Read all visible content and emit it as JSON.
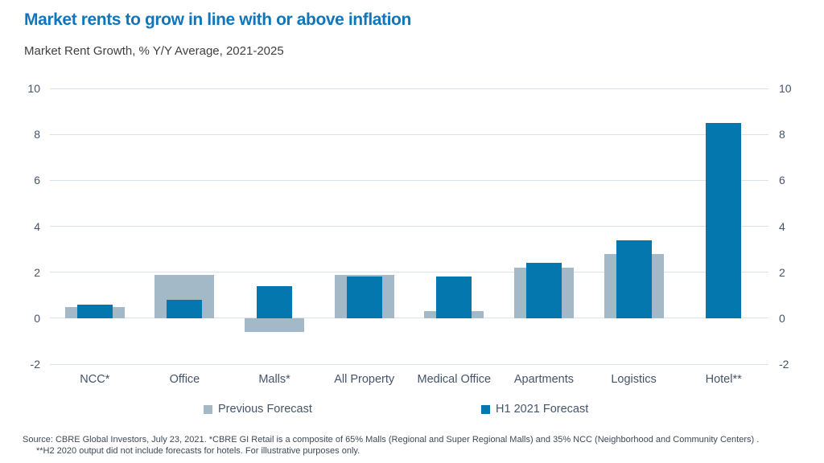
{
  "header": {
    "title": "Market rents to grow in line with or above inflation",
    "subtitle": "Market Rent Growth, % Y/Y Average, 2021-2025"
  },
  "colors": {
    "title": "#0F76BC",
    "previous_forecast": "#A3B9C8",
    "h1_2021_forecast": "#0478AE",
    "gridline": "#D9E1EA",
    "axis_text": "#44546A"
  },
  "chart_data": {
    "type": "bar",
    "title": "Market rents to grow in line with or above inflation",
    "subtitle": "Market Rent Growth, % Y/Y Average, 2021-2025",
    "categories": [
      "NCC*",
      "Office",
      "Malls*",
      "All Property",
      "Medical Office",
      "Apartments",
      "Logistics",
      "Hotel**"
    ],
    "series": [
      {
        "name": "Previous Forecast",
        "color": "#A3B9C8",
        "values": [
          0.5,
          1.9,
          -0.6,
          1.9,
          0.3,
          2.2,
          2.8,
          null
        ]
      },
      {
        "name": "H1 2021 Forecast",
        "color": "#0478AE",
        "values": [
          0.6,
          0.8,
          1.4,
          1.8,
          1.8,
          2.4,
          3.4,
          8.5
        ]
      }
    ],
    "ylabel": "",
    "xlabel": "",
    "ylim": [
      -2,
      10
    ],
    "yticks": [
      10,
      8,
      6,
      4,
      2,
      0,
      -2
    ],
    "grid": true,
    "bar_style": "overlapped",
    "legend_position": "bottom",
    "y_axis_sides": "both"
  },
  "legend": {
    "items": [
      {
        "label": "Previous Forecast"
      },
      {
        "label": "H1 2021 Forecast"
      }
    ]
  },
  "footer": {
    "line1": "Source: CBRE Global Investors, July 23, 2021. *CBRE GI Retail is a composite of 65% Malls (Regional and Super Regional Malls) and 35% NCC (Neighborhood and Community Centers) .",
    "line2": "**H2 2020 output did not include forecasts for hotels. For illustrative purposes only."
  }
}
